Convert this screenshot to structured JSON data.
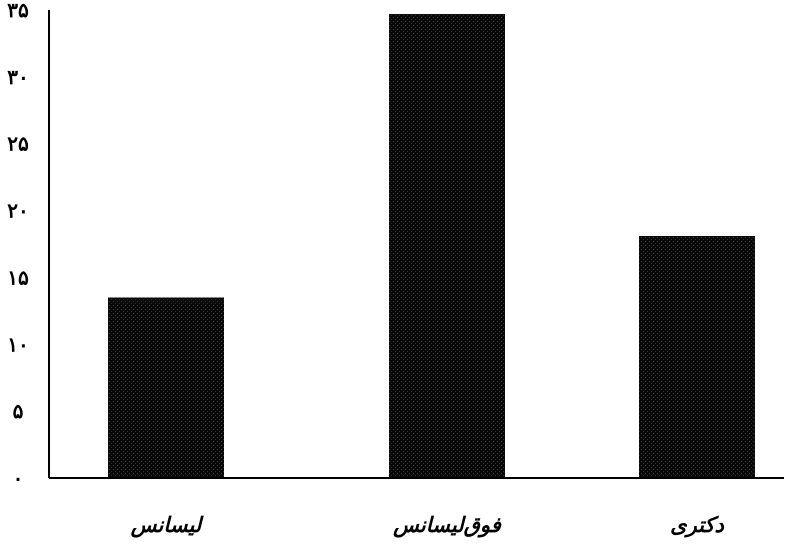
{
  "chart_data": {
    "type": "bar",
    "categories": [
      "لیسانس",
      "فوق‌لیسانس",
      "دکتری"
    ],
    "values": [
      13.5,
      34.7,
      18.1
    ],
    "ylim": [
      0,
      35
    ],
    "yticks": [
      0,
      5,
      10,
      15,
      20,
      25,
      30,
      35
    ],
    "ytick_labels": [
      "۰",
      "۵",
      "۱۰",
      "۱۵",
      "۲۰",
      "۲۵",
      "۳۰",
      "۳۵"
    ],
    "title": "",
    "xlabel": "",
    "ylabel": "",
    "grid": false,
    "legend": "none",
    "colors": {
      "bar": "#0a0a0a",
      "axis": "#000000"
    }
  }
}
